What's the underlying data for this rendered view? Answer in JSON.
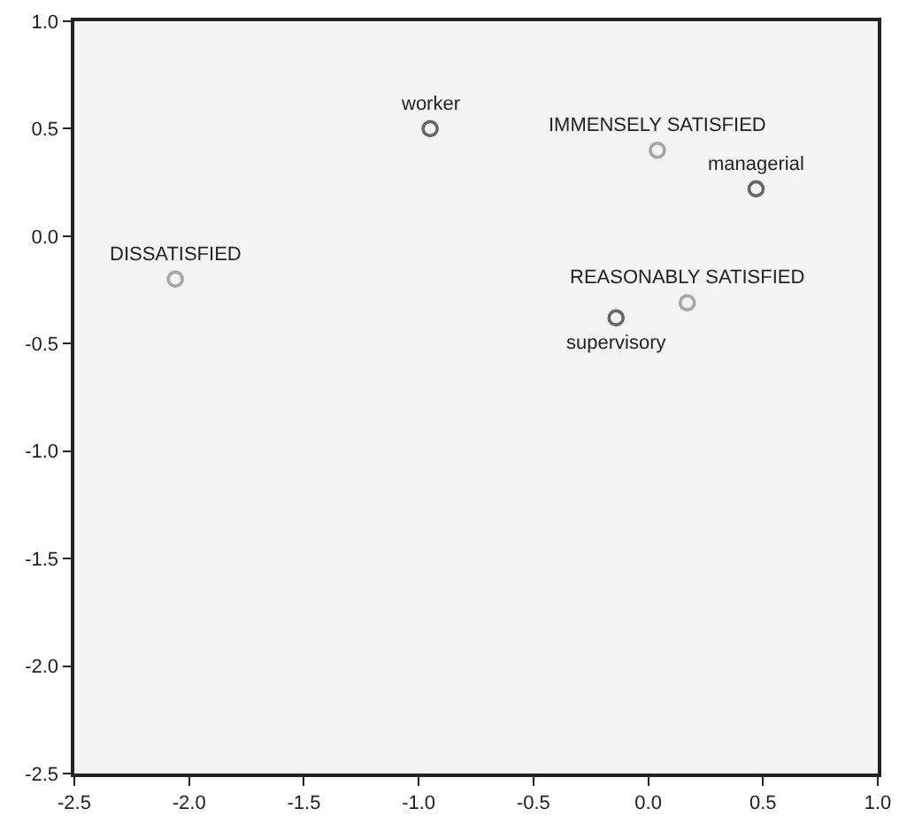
{
  "chart_data": {
    "type": "scatter",
    "marker": "circle",
    "grid": false,
    "series": [
      {
        "color": "#666666",
        "x": [
          -0.95,
          0.47,
          -0.14
        ],
        "values": [
          0.5,
          0.22,
          -0.38
        ]
      },
      {
        "color": "#a6a6a6",
        "x": [
          0.04,
          -2.06,
          0.17
        ],
        "values": [
          0.4,
          -0.2,
          -0.31
        ]
      }
    ],
    "annotations": [
      {
        "text": "worker",
        "x": -0.95,
        "y": 0.5
      },
      {
        "text": "managerial",
        "x": 0.47,
        "y": 0.22
      },
      {
        "text": "supervisory",
        "x": -0.14,
        "y": -0.38
      },
      {
        "text": "IMMENSELY SATISFIED",
        "x": 0.04,
        "y": 0.4
      },
      {
        "text": "DISSATISFIED",
        "x": -2.06,
        "y": -0.2
      },
      {
        "text": "REASONABLY SATISFIED",
        "x": 0.17,
        "y": -0.31
      }
    ],
    "xlim": [
      -2.5,
      1.0
    ],
    "ylim": [
      -2.5,
      1.0
    ],
    "xticks": [
      {
        "value": -2.5,
        "label": "-2.5"
      },
      {
        "value": -2,
        "label": "-2.0"
      },
      {
        "value": -1.5,
        "label": "-1.5"
      },
      {
        "value": -1,
        "label": "-1.0"
      },
      {
        "value": -0.5,
        "label": "-0.5"
      },
      {
        "value": 0,
        "label": "0.0"
      },
      {
        "value": 0.5,
        "label": "0.5"
      },
      {
        "value": 1,
        "label": "1.0"
      }
    ],
    "yticks": [
      {
        "value": -2.5,
        "label": "-2.5"
      },
      {
        "value": -2,
        "label": "-2.0"
      },
      {
        "value": -1.5,
        "label": "-1.5"
      },
      {
        "value": -1,
        "label": "-1.0"
      },
      {
        "value": -0.5,
        "label": "-0.5"
      },
      {
        "value": 0,
        "label": "0.0"
      },
      {
        "value": 0.5,
        "label": "0.5"
      },
      {
        "value": 1,
        "label": "1.0"
      }
    ]
  }
}
